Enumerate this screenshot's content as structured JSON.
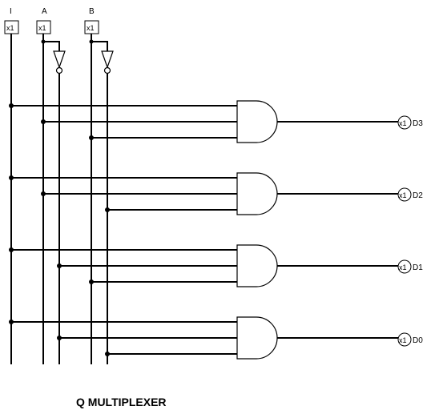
{
  "inputs": [
    {
      "name": "I",
      "box": "x1"
    },
    {
      "name": "A",
      "box": "x1"
    },
    {
      "name": "B",
      "box": "x1"
    }
  ],
  "outputs": [
    {
      "box": "x1",
      "name": "D3"
    },
    {
      "box": "x1",
      "name": "D2"
    },
    {
      "box": "x1",
      "name": "D1"
    },
    {
      "box": "x1",
      "name": "D0"
    }
  ],
  "caption": "Q MULTIPLEXER"
}
